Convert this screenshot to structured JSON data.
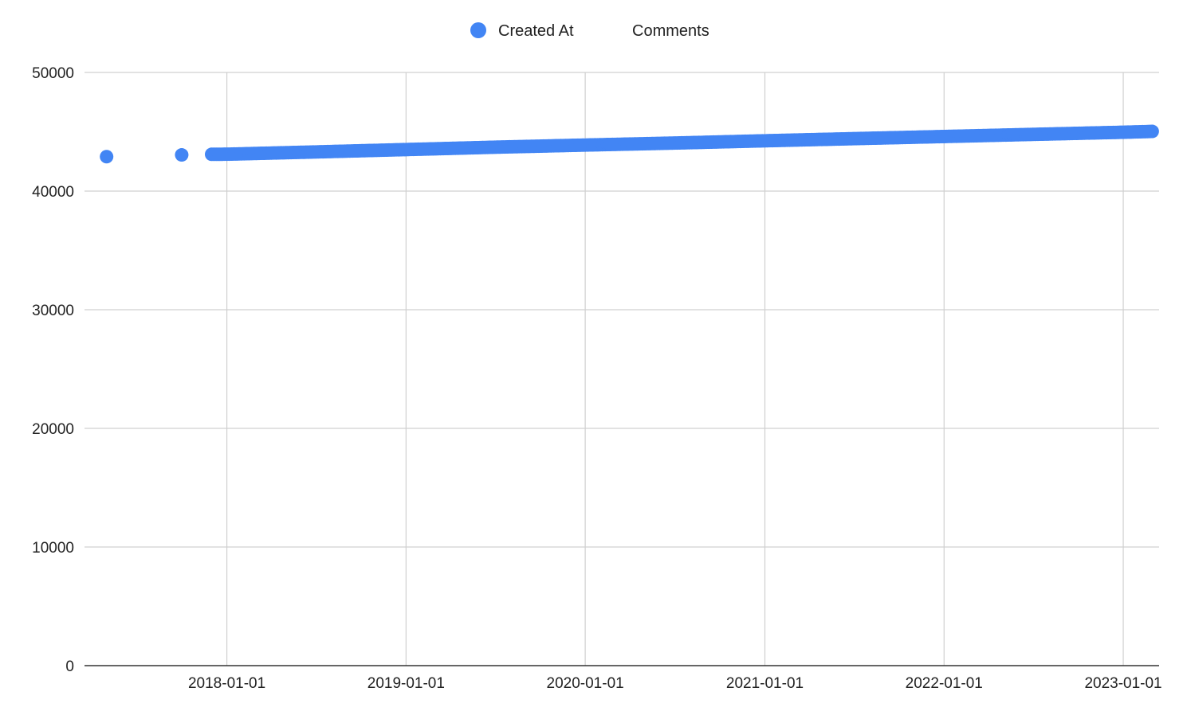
{
  "chart_data": {
    "type": "scatter",
    "legend": {
      "position": "top",
      "entries": [
        {
          "label": "Created At",
          "marker": "circle",
          "color": "#4285f4"
        },
        {
          "label": "Comments",
          "marker": "none"
        }
      ]
    },
    "series": [
      {
        "name": "Created At",
        "color": "#4285f4",
        "isolated_points": [
          {
            "x": "2017-05-01",
            "y": 42900
          },
          {
            "x": "2017-10-01",
            "y": 43050
          }
        ],
        "dense_trend": [
          {
            "x": "2017-12-01",
            "y": 43100
          },
          {
            "x": "2018-01-01",
            "y": 43110
          },
          {
            "x": "2018-07-01",
            "y": 43300
          },
          {
            "x": "2019-01-01",
            "y": 43500
          },
          {
            "x": "2019-07-01",
            "y": 43700
          },
          {
            "x": "2020-01-01",
            "y": 43880
          },
          {
            "x": "2020-07-01",
            "y": 44050
          },
          {
            "x": "2021-01-01",
            "y": 44240
          },
          {
            "x": "2021-07-01",
            "y": 44420
          },
          {
            "x": "2022-01-01",
            "y": 44600
          },
          {
            "x": "2022-07-01",
            "y": 44780
          },
          {
            "x": "2023-01-01",
            "y": 44960
          },
          {
            "x": "2023-03-01",
            "y": 45030
          }
        ]
      }
    ],
    "x_axis": {
      "type": "date",
      "range": [
        "2017-03-17",
        "2023-03-15"
      ],
      "ticks": [
        "2018-01-01",
        "2019-01-01",
        "2020-01-01",
        "2021-01-01",
        "2022-01-01",
        "2023-01-01"
      ],
      "gridlines": true
    },
    "y_axis": {
      "range": [
        0,
        50000
      ],
      "ticks": [
        0,
        10000,
        20000,
        30000,
        40000,
        50000
      ],
      "gridlines": true
    }
  }
}
